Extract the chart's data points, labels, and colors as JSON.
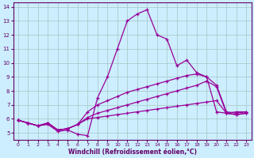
{
  "xlabel": "Windchill (Refroidissement éolien,°C)",
  "bg_color": "#cceeff",
  "grid_color": "#aabbcc",
  "line_color": "#990099",
  "xlim": [
    -0.5,
    23.5
  ],
  "ylim": [
    4.5,
    14.3
  ],
  "yticks": [
    5,
    6,
    7,
    8,
    9,
    10,
    11,
    12,
    13,
    14
  ],
  "xticks": [
    0,
    1,
    2,
    3,
    4,
    5,
    6,
    7,
    8,
    9,
    10,
    11,
    12,
    13,
    14,
    15,
    16,
    17,
    18,
    19,
    20,
    21,
    22,
    23
  ],
  "lines": [
    {
      "x": [
        0,
        1,
        2,
        3,
        4,
        5,
        6,
        7,
        8,
        9,
        10,
        11,
        12,
        13,
        14,
        15,
        16,
        17,
        18,
        19,
        20,
        21,
        22,
        23
      ],
      "y": [
        5.9,
        5.7,
        5.5,
        5.6,
        5.1,
        5.2,
        4.9,
        4.8,
        7.5,
        9.0,
        11.0,
        13.0,
        13.5,
        13.8,
        12.0,
        11.7,
        9.8,
        10.2,
        9.3,
        9.0,
        6.5,
        6.4,
        6.5,
        6.5
      ]
    },
    {
      "x": [
        0,
        1,
        2,
        3,
        4,
        5,
        6,
        7,
        8,
        9,
        10,
        11,
        12,
        13,
        14,
        15,
        16,
        17,
        18,
        19,
        20,
        21,
        22,
        23
      ],
      "y": [
        5.9,
        5.7,
        5.5,
        5.7,
        5.2,
        5.3,
        5.6,
        6.5,
        7.0,
        7.3,
        7.6,
        7.9,
        8.1,
        8.3,
        8.5,
        8.7,
        8.9,
        9.1,
        9.2,
        9.0,
        8.4,
        6.5,
        6.4,
        6.5
      ]
    },
    {
      "x": [
        0,
        1,
        2,
        3,
        4,
        5,
        6,
        7,
        8,
        9,
        10,
        11,
        12,
        13,
        14,
        15,
        16,
        17,
        18,
        19,
        20,
        21,
        22,
        23
      ],
      "y": [
        5.9,
        5.7,
        5.5,
        5.7,
        5.2,
        5.3,
        5.6,
        6.1,
        6.4,
        6.6,
        6.8,
        7.0,
        7.2,
        7.4,
        7.6,
        7.8,
        8.0,
        8.2,
        8.4,
        8.7,
        8.3,
        6.4,
        6.3,
        6.4
      ]
    },
    {
      "x": [
        0,
        1,
        2,
        3,
        4,
        5,
        6,
        7,
        8,
        9,
        10,
        11,
        12,
        13,
        14,
        15,
        16,
        17,
        18,
        19,
        20,
        21,
        22,
        23
      ],
      "y": [
        5.9,
        5.7,
        5.5,
        5.7,
        5.2,
        5.3,
        5.6,
        6.0,
        6.1,
        6.2,
        6.3,
        6.4,
        6.5,
        6.6,
        6.7,
        6.8,
        6.9,
        7.0,
        7.1,
        7.2,
        7.3,
        6.4,
        6.3,
        6.4
      ]
    }
  ]
}
